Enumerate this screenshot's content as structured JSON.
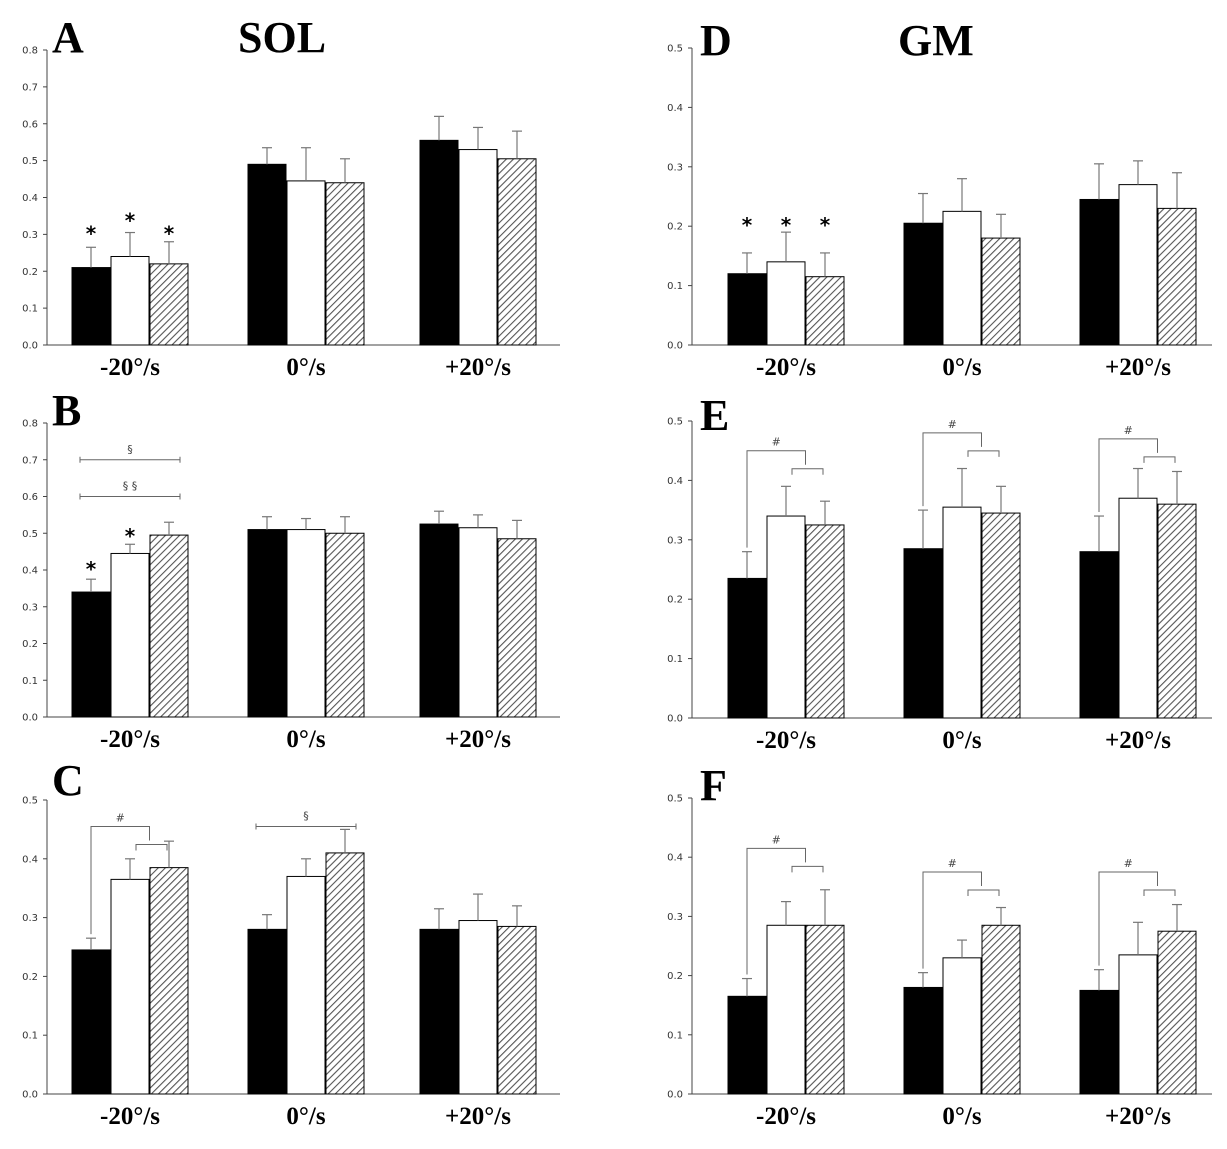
{
  "colors": {
    "bar_black": "#000000",
    "bar_white": "#ffffff",
    "bar_hatch": "#555555",
    "axis": "#444444",
    "error": "#777777"
  },
  "chart_data": [
    {
      "id": "A",
      "panel_label": "A",
      "muscle_label": "SOL",
      "type": "bar",
      "categories": [
        "-20°/s",
        "0°/s",
        "+20°/s"
      ],
      "series": [
        {
          "values": [
            0.21,
            0.49,
            0.555
          ],
          "errors": [
            0.055,
            0.045,
            0.065
          ]
        },
        {
          "values": [
            0.24,
            0.445,
            0.53
          ],
          "errors": [
            0.065,
            0.09,
            0.06
          ]
        },
        {
          "values": [
            0.22,
            0.44,
            0.505
          ],
          "errors": [
            0.06,
            0.065,
            0.075
          ]
        }
      ],
      "yticks": [
        "0.0",
        "0.1",
        "0.2",
        "0.3",
        "0.4",
        "0.5",
        "0.6",
        "0.7",
        "0.8"
      ],
      "ylim": [
        0,
        0.8
      ],
      "annotations": [
        {
          "text": "*",
          "category": 0,
          "bar": 0,
          "y": 0.3
        },
        {
          "text": "*",
          "category": 0,
          "bar": 1,
          "y": 0.335
        },
        {
          "text": "*",
          "category": 0,
          "bar": 2,
          "y": 0.3
        }
      ],
      "brackets": []
    },
    {
      "id": "B",
      "panel_label": "B",
      "muscle_label": "",
      "type": "bar",
      "categories": [
        "-20°/s",
        "0°/s",
        "+20°/s"
      ],
      "series": [
        {
          "values": [
            0.34,
            0.51,
            0.525
          ],
          "errors": [
            0.035,
            0.035,
            0.035
          ]
        },
        {
          "values": [
            0.445,
            0.51,
            0.515
          ],
          "errors": [
            0.025,
            0.03,
            0.035
          ]
        },
        {
          "values": [
            0.495,
            0.5,
            0.485
          ],
          "errors": [
            0.035,
            0.045,
            0.05
          ]
        }
      ],
      "yticks": [
        "0.0",
        "0.1",
        "0.2",
        "0.3",
        "0.4",
        "0.5",
        "0.6",
        "0.7",
        "0.8"
      ],
      "ylim": [
        0,
        0.8
      ],
      "annotations": [
        {
          "text": "*",
          "category": 0,
          "bar": 0,
          "y": 0.4
        },
        {
          "text": "*",
          "category": 0,
          "bar": 1,
          "y": 0.49
        }
      ],
      "brackets": [
        {
          "type": "line",
          "category": 0,
          "from": 0,
          "to": 2,
          "y": 0.7,
          "label": "§"
        },
        {
          "type": "line",
          "category": 0,
          "from": 0,
          "to": 2,
          "y": 0.6,
          "label": "§   §"
        }
      ]
    },
    {
      "id": "C",
      "panel_label": "C",
      "muscle_label": "",
      "type": "bar",
      "categories": [
        "-20°/s",
        "0°/s",
        "+20°/s"
      ],
      "series": [
        {
          "values": [
            0.245,
            0.28,
            0.28
          ],
          "errors": [
            0.02,
            0.025,
            0.035
          ]
        },
        {
          "values": [
            0.365,
            0.37,
            0.295
          ],
          "errors": [
            0.035,
            0.03,
            0.045
          ]
        },
        {
          "values": [
            0.385,
            0.41,
            0.285
          ],
          "errors": [
            0.045,
            0.04,
            0.035
          ]
        }
      ],
      "yticks": [
        "0.0",
        "0.1",
        "0.2",
        "0.3",
        "0.4",
        "0.5"
      ],
      "ylim": [
        0,
        0.5
      ],
      "annotations": [],
      "brackets": [
        {
          "type": "hash",
          "category": 0,
          "y": 0.455,
          "label": "#"
        },
        {
          "type": "line",
          "category": 1,
          "from": 0,
          "to": 2,
          "y": 0.455,
          "label": "§"
        }
      ]
    },
    {
      "id": "D",
      "panel_label": "D",
      "muscle_label": "GM",
      "type": "bar",
      "categories": [
        "-20°/s",
        "0°/s",
        "+20°/s"
      ],
      "series": [
        {
          "values": [
            0.12,
            0.205,
            0.245
          ],
          "errors": [
            0.035,
            0.05,
            0.06
          ]
        },
        {
          "values": [
            0.14,
            0.225,
            0.27
          ],
          "errors": [
            0.05,
            0.055,
            0.04
          ]
        },
        {
          "values": [
            0.115,
            0.18,
            0.23
          ],
          "errors": [
            0.04,
            0.04,
            0.06
          ]
        }
      ],
      "yticks": [
        "0.0",
        "0.1",
        "0.2",
        "0.3",
        "0.4",
        "0.5"
      ],
      "ylim": [
        0,
        0.5
      ],
      "annotations": [
        {
          "text": "*",
          "category": 0,
          "bar": 0,
          "y": 0.2
        },
        {
          "text": "*",
          "category": 0,
          "bar": 1,
          "y": 0.2
        },
        {
          "text": "*",
          "category": 0,
          "bar": 2,
          "y": 0.2
        }
      ],
      "brackets": []
    },
    {
      "id": "E",
      "panel_label": "E",
      "muscle_label": "",
      "type": "bar",
      "categories": [
        "-20°/s",
        "0°/s",
        "+20°/s"
      ],
      "series": [
        {
          "values": [
            0.235,
            0.285,
            0.28
          ],
          "errors": [
            0.045,
            0.065,
            0.06
          ]
        },
        {
          "values": [
            0.34,
            0.355,
            0.37
          ],
          "errors": [
            0.05,
            0.065,
            0.05
          ]
        },
        {
          "values": [
            0.325,
            0.345,
            0.36
          ],
          "errors": [
            0.04,
            0.045,
            0.055
          ]
        }
      ],
      "yticks": [
        "0.0",
        "0.1",
        "0.2",
        "0.3",
        "0.4",
        "0.5"
      ],
      "ylim": [
        0,
        0.5
      ],
      "annotations": [],
      "brackets": [
        {
          "type": "hash",
          "category": 0,
          "y": 0.45,
          "label": "#"
        },
        {
          "type": "hash",
          "category": 1,
          "y": 0.48,
          "label": "#"
        },
        {
          "type": "hash",
          "category": 2,
          "y": 0.47,
          "label": "#"
        }
      ]
    },
    {
      "id": "F",
      "panel_label": "F",
      "muscle_label": "",
      "type": "bar",
      "categories": [
        "-20°/s",
        "0°/s",
        "+20°/s"
      ],
      "series": [
        {
          "values": [
            0.165,
            0.18,
            0.175
          ],
          "errors": [
            0.03,
            0.025,
            0.035
          ]
        },
        {
          "values": [
            0.285,
            0.23,
            0.235
          ],
          "errors": [
            0.04,
            0.03,
            0.055
          ]
        },
        {
          "values": [
            0.285,
            0.285,
            0.275
          ],
          "errors": [
            0.06,
            0.03,
            0.045
          ]
        }
      ],
      "yticks": [
        "0.0",
        "0.1",
        "0.2",
        "0.3",
        "0.4",
        "0.5"
      ],
      "ylim": [
        0,
        0.5
      ],
      "annotations": [],
      "brackets": [
        {
          "type": "hash",
          "category": 0,
          "y": 0.415,
          "label": "#"
        },
        {
          "type": "hash",
          "category": 1,
          "y": 0.375,
          "label": "#"
        },
        {
          "type": "hash",
          "category": 2,
          "y": 0.375,
          "label": "#"
        }
      ]
    }
  ]
}
